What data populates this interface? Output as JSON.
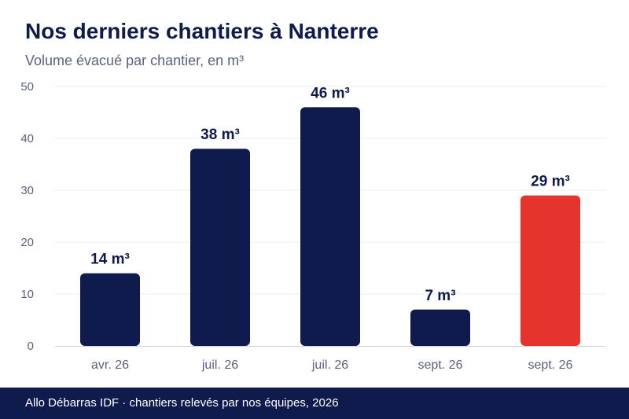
{
  "header": {
    "title": "Nos derniers chantiers à Nanterre",
    "subtitle": "Volume évacué par chantier, en m³"
  },
  "footer": {
    "source": "Allo Débarras IDF · chantiers relevés par nos équipes, 2026"
  },
  "colors": {
    "primary": "#0f1b4c",
    "highlight": "#e5332e",
    "grid": "#ececef",
    "axis_text": "#5b6180",
    "baseline": "#c9cbe0"
  },
  "chart_data": {
    "type": "bar",
    "categories": [
      "avr. 26",
      "juil. 26",
      "juil. 26",
      "sept. 26",
      "sept. 26"
    ],
    "values": [
      14,
      38,
      46,
      7,
      29
    ],
    "data_labels": [
      "14 m³",
      "38 m³",
      "46 m³",
      "7 m³",
      "29 m³"
    ],
    "highlighted_index": 4,
    "ylim": [
      0,
      50
    ],
    "yticks": [
      0,
      10,
      20,
      30,
      40,
      50
    ],
    "grid": true,
    "legend": "none"
  }
}
